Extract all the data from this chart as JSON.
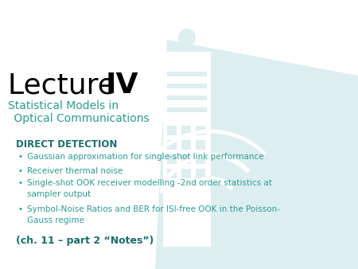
{
  "background_color": "#ffffff",
  "watermark_color": "#ddeef1",
  "title_lecture": "Lecture ",
  "title_roman": "IV",
  "subtitle_line1": "Statistical Models in",
  "subtitle_line2": " Optical Communications",
  "subtitle_color": "#2a9d8f",
  "title_color": "#000000",
  "section_header": "DIRECT DETECTION",
  "section_header_color": "#1a6e6e",
  "bullet_color": "#2a9d8f",
  "bullets": [
    "Gaussian approximation for single-shot link performance",
    "Receiver thermal noise",
    "Single-shot OOK receiver modelling -2nd order statistics at\nsampler output",
    "Symbol-Noise Ratios and BER for ISI-free OOK in the Poisson-\nGauss regime"
  ],
  "footer": "(ch. 11 – part 2 “Notes”)",
  "footer_color": "#1a6e6e"
}
